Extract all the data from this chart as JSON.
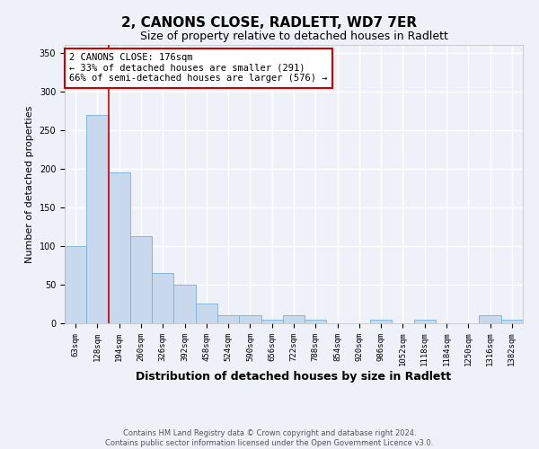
{
  "title": "2, CANONS CLOSE, RADLETT, WD7 7ER",
  "subtitle": "Size of property relative to detached houses in Radlett",
  "xlabel": "Distribution of detached houses by size in Radlett",
  "ylabel": "Number of detached properties",
  "footnote": "Contains HM Land Registry data © Crown copyright and database right 2024.\nContains public sector information licensed under the Open Government Licence v3.0.",
  "bin_labels": [
    "63sqm",
    "128sqm",
    "194sqm",
    "260sqm",
    "326sqm",
    "392sqm",
    "458sqm",
    "524sqm",
    "590sqm",
    "656sqm",
    "722sqm",
    "788sqm",
    "854sqm",
    "920sqm",
    "986sqm",
    "1052sqm",
    "1118sqm",
    "1184sqm",
    "1250sqm",
    "1316sqm",
    "1382sqm"
  ],
  "bar_heights": [
    100,
    270,
    195,
    113,
    65,
    50,
    25,
    10,
    10,
    5,
    10,
    5,
    0,
    0,
    5,
    0,
    5,
    0,
    0,
    10,
    5
  ],
  "bar_color": "#c8d9ee",
  "bar_edge_color": "#7aafd4",
  "property_line_color": "#cc0000",
  "annotation_text": "2 CANONS CLOSE: 176sqm\n← 33% of detached houses are smaller (291)\n66% of semi-detached houses are larger (576) →",
  "annotation_box_color": "#ffffff",
  "annotation_box_edge": "#cc0000",
  "ylim": [
    0,
    360
  ],
  "yticks": [
    0,
    50,
    100,
    150,
    200,
    250,
    300,
    350
  ],
  "background_color": "#eef2f8",
  "title_fontsize": 11,
  "subtitle_fontsize": 9,
  "xlabel_fontsize": 9,
  "ylabel_fontsize": 8,
  "grid_color": "#ffffff",
  "annotation_fontsize": 7.5,
  "tick_fontsize": 6.5
}
